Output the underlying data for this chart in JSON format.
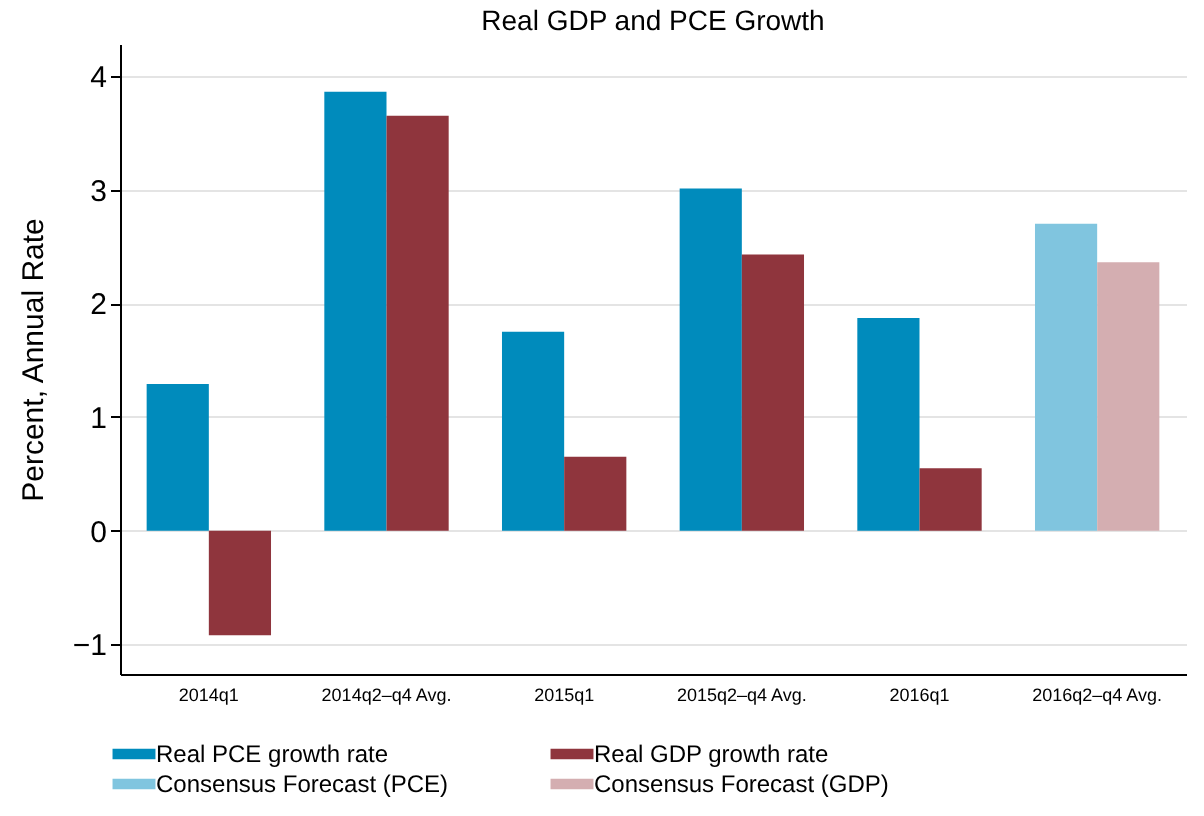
{
  "chart_data": {
    "type": "bar",
    "title": "Real GDP and PCE Growth",
    "ylabel": "Percent, Annual Rate",
    "categories": [
      "2014q1",
      "2014q2–q4 Avg.",
      "2015q1",
      "2015q2–q4 Avg.",
      "2016q1",
      "2016q2–q4 Avg."
    ],
    "series": [
      {
        "name": "Real PCE growth rate",
        "color": "#008bbc",
        "values": [
          1.29,
          3.86,
          1.75,
          3.01,
          1.87,
          null
        ]
      },
      {
        "name": "Real GDP growth rate",
        "color": "#8f353d",
        "values": [
          -0.92,
          3.65,
          0.65,
          2.43,
          0.55,
          null
        ]
      },
      {
        "name": "Consensus Forecast (PCE)",
        "color": "#80c5df",
        "values": [
          null,
          null,
          null,
          null,
          null,
          2.7
        ]
      },
      {
        "name": "Consensus Forecast (GDP)",
        "color": "#d4aeb1",
        "values": [
          null,
          null,
          null,
          null,
          null,
          2.36
        ]
      }
    ],
    "ylim": [
      -1.26,
      4.28
    ],
    "yticks": [
      -1,
      0,
      1,
      2,
      3,
      4
    ],
    "grid": "y",
    "legend": "bottom"
  }
}
